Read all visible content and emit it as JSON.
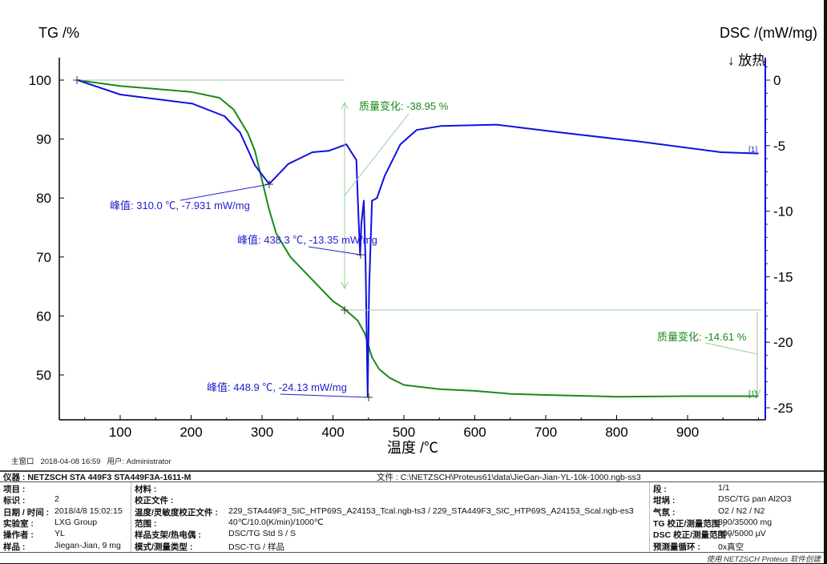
{
  "chart_data": {
    "type": "line",
    "xlabel": "温度 /℃",
    "ylabel_left": "TG /%",
    "ylabel_right": "DSC /(mW/mg)",
    "exo_label": "↓ 放热",
    "xlim": [
      15,
      1000
    ],
    "ylim_left": [
      43,
      104
    ],
    "ylim_right": [
      -25.9,
      1.5
    ],
    "x_ticks": [
      100,
      200,
      300,
      400,
      500,
      600,
      700,
      800,
      900
    ],
    "y_ticks_left": [
      100,
      90,
      80,
      70,
      60,
      50
    ],
    "y_ticks_right": [
      0,
      -5,
      -10,
      -15,
      -20,
      -25
    ],
    "colors": {
      "tg": "#1a8a1a",
      "dsc": "#1010e0",
      "annotation_tg": "#1a8a1a",
      "annotation_dsc": "#2020d0",
      "guide": "#99cc99"
    },
    "series": [
      {
        "axis": "left",
        "color": "#1a8a1a",
        "x": [
          40,
          100,
          150,
          200,
          240,
          260,
          280,
          290,
          300,
          310,
          320,
          340,
          360,
          380,
          400,
          415,
          435,
          445,
          455,
          465,
          480,
          500,
          550,
          600,
          650,
          700,
          800,
          900,
          1000
        ],
        "y": [
          100,
          99,
          98.5,
          98,
          97,
          95,
          91,
          88,
          83,
          78,
          74,
          70,
          67.5,
          65,
          62.5,
          61.3,
          59.2,
          57,
          53,
          51,
          49.5,
          48.3,
          47.6,
          47.3,
          46.8,
          46.6,
          46.3,
          46.4,
          46.4
        ]
      },
      {
        "axis": "right",
        "color": "#1010e0",
        "x": [
          40,
          100,
          202,
          247,
          269,
          290,
          310,
          337,
          371,
          394,
          419,
          433,
          436,
          438.3,
          440,
          443.5,
          446,
          448.9,
          451,
          455,
          462,
          473,
          495,
          518,
          552,
          631,
          721,
          834,
          947,
          1000
        ],
        "y": [
          0,
          -1.1,
          -1.8,
          -2.75,
          -4,
          -6.5,
          -7.93,
          -6.4,
          -5.5,
          -5.4,
          -4.9,
          -6.1,
          -10.5,
          -13.35,
          -11,
          -9.2,
          -14,
          -24.13,
          -16,
          -9.2,
          -9,
          -7.3,
          -4.9,
          -3.8,
          -3.5,
          -3.4,
          -4,
          -4.7,
          -5.5,
          -5.6
        ]
      }
    ],
    "annotations": {
      "mass_change_1": "质量变化: -38.95 %",
      "mass_change_2": "质量变化: -14.61 %",
      "peak_1": "峰值: 310.0 ℃, -7.931 mW/mg",
      "peak_2": "峰值: 438.3 ℃, -13.35 mW/mg",
      "peak_3": "峰值: 448.9 ℃, -24.13 mW/mg",
      "segment_tag_1": "[1]",
      "segment_tag_2": "[1]"
    }
  },
  "status": {
    "window": "主窗口",
    "datetime": "2018-04-08 16:59",
    "user": "用户: Administrator"
  },
  "info": {
    "instrument": "仪器 : NETZSCH STA 449F3 STA449F3A-1611-M",
    "file": "文件 : C:\\NETZSCH\\Proteus61\\data\\JieGan-Jian-YL-10k-1000.ngb-ss3",
    "col1": [
      [
        "项目 :",
        ""
      ],
      [
        "标识 :",
        "2"
      ],
      [
        "日期 / 时间 :",
        "2018/4/8 15:02:15"
      ],
      [
        "实验室 :",
        "LXG Group"
      ],
      [
        "操作者 :",
        "YL"
      ],
      [
        "样品 :",
        "Jiegan-Jian, 9 mg"
      ]
    ],
    "col2": [
      [
        "材料 :",
        ""
      ],
      [
        "校正文件 :",
        ""
      ],
      [
        "温度/灵敏度校正文件 :",
        "229_STA449F3_SIC_HTP69S_A24153_Tcal.ngb-ts3 / 229_STA449F3_SIC_HTP69S_A24153_Scal.ngb-es3"
      ],
      [
        "范围 :",
        "40℃/10.0(K/min)/1000℃"
      ],
      [
        "样品支架/热电偶 :",
        "DSC/TG Std S / S"
      ],
      [
        "模式/测量类型 :",
        "DSC-TG / 样品"
      ]
    ],
    "col3": [
      [
        "段 :",
        "1/1"
      ],
      [
        "坩埚 :",
        "DSC/TG pan Al2O3"
      ],
      [
        "气氛 :",
        "O2 / N2 / N2"
      ],
      [
        "TG 校正/测量范围 :",
        "890/35000 mg"
      ],
      [
        "DSC 校正/测量范围 :",
        "000/5000 µV"
      ],
      [
        "预测量循环 :",
        "0x真空"
      ]
    ],
    "footer": "使用 NETZSCH Proteus 软件创建"
  }
}
